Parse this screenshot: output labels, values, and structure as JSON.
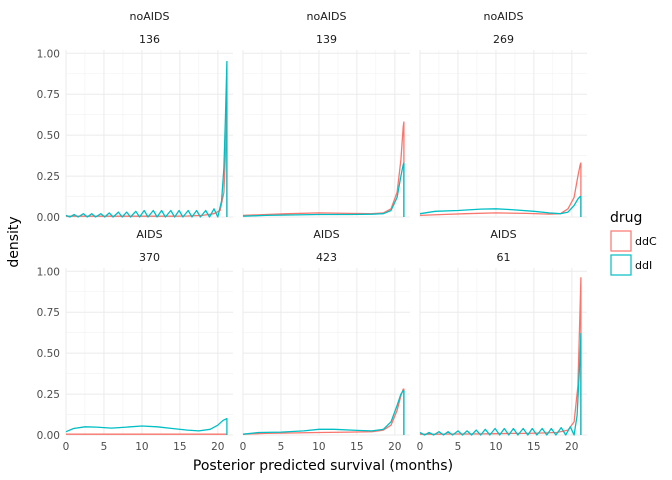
{
  "chart_data": {
    "type": "line",
    "xlabel": "Posterior predicted survival (months)",
    "ylabel": "density",
    "xlim": [
      0,
      22
    ],
    "ylim": [
      0,
      1.02
    ],
    "x_ticks": [
      0,
      5,
      10,
      15,
      20
    ],
    "x_tick_labels": [
      "0",
      "5",
      "10",
      "15",
      "20"
    ],
    "y_ticks": [
      0,
      0.25,
      0.5,
      0.75,
      1.0
    ],
    "y_tick_labels": [
      "0.00",
      "0.25",
      "0.50",
      "0.75",
      "1.00"
    ],
    "grid": true,
    "legend": {
      "title": "drug",
      "position": "right",
      "entries": [
        {
          "label": "ddC",
          "color": "#F8766D"
        },
        {
          "label": "ddI",
          "color": "#00BFC4"
        }
      ]
    },
    "panels": [
      {
        "strip_top": "noAIDS",
        "strip_bottom": "136",
        "series": [
          {
            "name": "ddC",
            "color": "#F8766D",
            "points": [
              [
                0,
                0.005
              ],
              [
                2,
                0.005
              ],
              [
                4,
                0.005
              ],
              [
                6,
                0.005
              ],
              [
                8,
                0.005
              ],
              [
                10,
                0.005
              ],
              [
                12,
                0.005
              ],
              [
                14,
                0.005
              ],
              [
                16,
                0.006
              ],
              [
                18,
                0.01
              ],
              [
                19.5,
                0.02
              ],
              [
                20.3,
                0.04
              ],
              [
                20.8,
                0.15
              ],
              [
                21.1,
                0.5
              ],
              [
                21.2,
                0.72
              ],
              [
                21.2,
                0
              ]
            ]
          },
          {
            "name": "ddI",
            "color": "#00BFC4",
            "points": [
              [
                0,
                0.01
              ],
              [
                0.5,
                0.0
              ],
              [
                1.1,
                0.015
              ],
              [
                1.6,
                0.0
              ],
              [
                2.3,
                0.02
              ],
              [
                2.8,
                0.0
              ],
              [
                3.4,
                0.02
              ],
              [
                3.9,
                0.0
              ],
              [
                4.6,
                0.02
              ],
              [
                5.1,
                0.0
              ],
              [
                5.7,
                0.025
              ],
              [
                6.2,
                0.0
              ],
              [
                6.9,
                0.03
              ],
              [
                7.4,
                0.0
              ],
              [
                8.0,
                0.03
              ],
              [
                8.5,
                0.0
              ],
              [
                9.2,
                0.035
              ],
              [
                9.7,
                0.0
              ],
              [
                10.3,
                0.04
              ],
              [
                10.8,
                0.0
              ],
              [
                11.5,
                0.04
              ],
              [
                12.0,
                0.0
              ],
              [
                12.6,
                0.04
              ],
              [
                13.1,
                0.0
              ],
              [
                13.8,
                0.04
              ],
              [
                14.3,
                0.0
              ],
              [
                14.9,
                0.04
              ],
              [
                15.4,
                0.0
              ],
              [
                16.1,
                0.04
              ],
              [
                16.6,
                0.0
              ],
              [
                17.2,
                0.04
              ],
              [
                17.7,
                0.0
              ],
              [
                18.4,
                0.04
              ],
              [
                18.9,
                0.0
              ],
              [
                19.5,
                0.05
              ],
              [
                20.0,
                0.0
              ],
              [
                20.5,
                0.1
              ],
              [
                20.8,
                0.3
              ],
              [
                21.0,
                0.6
              ],
              [
                21.2,
                0.95
              ],
              [
                21.2,
                0
              ]
            ]
          }
        ]
      },
      {
        "strip_top": "noAIDS",
        "strip_bottom": "139",
        "series": [
          {
            "name": "ddC",
            "color": "#F8766D",
            "points": [
              [
                0,
                0.01
              ],
              [
                3,
                0.015
              ],
              [
                6,
                0.02
              ],
              [
                10,
                0.025
              ],
              [
                14,
                0.022
              ],
              [
                17,
                0.02
              ],
              [
                18.5,
                0.025
              ],
              [
                19.5,
                0.05
              ],
              [
                20.3,
                0.15
              ],
              [
                20.8,
                0.35
              ],
              [
                21.1,
                0.55
              ],
              [
                21.2,
                0.58
              ],
              [
                21.2,
                0
              ]
            ]
          },
          {
            "name": "ddI",
            "color": "#00BFC4",
            "points": [
              [
                0,
                0.005
              ],
              [
                3,
                0.01
              ],
              [
                6,
                0.012
              ],
              [
                10,
                0.015
              ],
              [
                14,
                0.015
              ],
              [
                17,
                0.017
              ],
              [
                18.5,
                0.02
              ],
              [
                19.5,
                0.04
              ],
              [
                20.3,
                0.12
              ],
              [
                20.8,
                0.25
              ],
              [
                21.1,
                0.32
              ],
              [
                21.2,
                0.33
              ],
              [
                21.2,
                0
              ]
            ]
          }
        ]
      },
      {
        "strip_top": "noAIDS",
        "strip_bottom": "269",
        "series": [
          {
            "name": "ddC",
            "color": "#F8766D",
            "points": [
              [
                0,
                0.01
              ],
              [
                3,
                0.015
              ],
              [
                6,
                0.02
              ],
              [
                10,
                0.025
              ],
              [
                14,
                0.022
              ],
              [
                17,
                0.018
              ],
              [
                18.5,
                0.02
              ],
              [
                19.5,
                0.05
              ],
              [
                20.3,
                0.12
              ],
              [
                20.8,
                0.25
              ],
              [
                21.1,
                0.32
              ],
              [
                21.2,
                0.33
              ],
              [
                21.2,
                0
              ]
            ]
          },
          {
            "name": "ddI",
            "color": "#00BFC4",
            "points": [
              [
                0,
                0.02
              ],
              [
                2,
                0.035
              ],
              [
                5,
                0.04
              ],
              [
                8,
                0.048
              ],
              [
                10,
                0.05
              ],
              [
                12,
                0.045
              ],
              [
                15,
                0.035
              ],
              [
                17,
                0.025
              ],
              [
                18.5,
                0.02
              ],
              [
                19.5,
                0.03
              ],
              [
                20.3,
                0.07
              ],
              [
                20.8,
                0.11
              ],
              [
                21.1,
                0.125
              ],
              [
                21.2,
                0.125
              ],
              [
                21.2,
                0
              ]
            ]
          }
        ]
      },
      {
        "strip_top": "AIDS",
        "strip_bottom": "370",
        "series": [
          {
            "name": "ddC",
            "color": "#F8766D",
            "points": [
              [
                0,
                0.005
              ],
              [
                5,
                0.005
              ],
              [
                10,
                0.005
              ],
              [
                15,
                0.005
              ],
              [
                20,
                0.005
              ],
              [
                21.2,
                0.005
              ]
            ]
          },
          {
            "name": "ddI",
            "color": "#00BFC4",
            "points": [
              [
                0,
                0.02
              ],
              [
                1,
                0.04
              ],
              [
                2.5,
                0.05
              ],
              [
                4,
                0.048
              ],
              [
                6,
                0.042
              ],
              [
                8,
                0.048
              ],
              [
                10,
                0.055
              ],
              [
                12,
                0.05
              ],
              [
                14,
                0.04
              ],
              [
                16,
                0.03
              ],
              [
                17.5,
                0.025
              ],
              [
                19,
                0.035
              ],
              [
                20,
                0.06
              ],
              [
                20.7,
                0.09
              ],
              [
                21.2,
                0.1
              ],
              [
                21.2,
                0
              ]
            ]
          }
        ]
      },
      {
        "strip_top": "AIDS",
        "strip_bottom": "423",
        "series": [
          {
            "name": "ddC",
            "color": "#F8766D",
            "points": [
              [
                0,
                0.005
              ],
              [
                3,
                0.01
              ],
              [
                6,
                0.012
              ],
              [
                10,
                0.015
              ],
              [
                14,
                0.018
              ],
              [
                17,
                0.02
              ],
              [
                18.5,
                0.03
              ],
              [
                19.5,
                0.06
              ],
              [
                20.3,
                0.15
              ],
              [
                20.8,
                0.24
              ],
              [
                21.1,
                0.28
              ],
              [
                21.2,
                0.28
              ],
              [
                21.2,
                0
              ]
            ]
          },
          {
            "name": "ddI",
            "color": "#00BFC4",
            "points": [
              [
                0,
                0.005
              ],
              [
                2,
                0.015
              ],
              [
                5,
                0.018
              ],
              [
                8,
                0.025
              ],
              [
                10,
                0.035
              ],
              [
                12,
                0.035
              ],
              [
                15,
                0.028
              ],
              [
                17,
                0.025
              ],
              [
                18.5,
                0.035
              ],
              [
                19.5,
                0.08
              ],
              [
                20.3,
                0.18
              ],
              [
                20.8,
                0.25
              ],
              [
                21.1,
                0.27
              ],
              [
                21.2,
                0.27
              ],
              [
                21.2,
                0
              ]
            ]
          }
        ]
      },
      {
        "strip_top": "AIDS",
        "strip_bottom": "61",
        "series": [
          {
            "name": "ddC",
            "color": "#F8766D",
            "points": [
              [
                0,
                0.005
              ],
              [
                2,
                0.005
              ],
              [
                4,
                0.006
              ],
              [
                6,
                0.006
              ],
              [
                8,
                0.007
              ],
              [
                10,
                0.008
              ],
              [
                12,
                0.01
              ],
              [
                14,
                0.01
              ],
              [
                16,
                0.012
              ],
              [
                18,
                0.015
              ],
              [
                19.5,
                0.03
              ],
              [
                20.3,
                0.08
              ],
              [
                20.8,
                0.3
              ],
              [
                21.1,
                0.8
              ],
              [
                21.2,
                0.96
              ],
              [
                21.2,
                0
              ]
            ]
          },
          {
            "name": "ddI",
            "color": "#00BFC4",
            "points": [
              [
                0,
                0.015
              ],
              [
                0.6,
                0.0
              ],
              [
                1.2,
                0.015
              ],
              [
                1.8,
                0.0
              ],
              [
                2.5,
                0.02
              ],
              [
                3.1,
                0.0
              ],
              [
                3.7,
                0.02
              ],
              [
                4.3,
                0.0
              ],
              [
                5.0,
                0.025
              ],
              [
                5.6,
                0.0
              ],
              [
                6.2,
                0.025
              ],
              [
                6.8,
                0.0
              ],
              [
                7.4,
                0.03
              ],
              [
                8.0,
                0.0
              ],
              [
                8.6,
                0.035
              ],
              [
                9.2,
                0.0
              ],
              [
                9.9,
                0.04
              ],
              [
                10.5,
                0.0
              ],
              [
                11.1,
                0.04
              ],
              [
                11.7,
                0.0
              ],
              [
                12.3,
                0.04
              ],
              [
                12.9,
                0.0
              ],
              [
                13.6,
                0.04
              ],
              [
                14.2,
                0.0
              ],
              [
                14.8,
                0.04
              ],
              [
                15.4,
                0.0
              ],
              [
                16.1,
                0.04
              ],
              [
                16.7,
                0.0
              ],
              [
                17.3,
                0.04
              ],
              [
                17.9,
                0.0
              ],
              [
                18.6,
                0.045
              ],
              [
                19.2,
                0.0
              ],
              [
                19.8,
                0.05
              ],
              [
                20.3,
                0.0
              ],
              [
                20.7,
                0.12
              ],
              [
                20.9,
                0.3
              ],
              [
                21.1,
                0.5
              ],
              [
                21.2,
                0.62
              ],
              [
                21.2,
                0
              ]
            ]
          }
        ]
      }
    ]
  }
}
